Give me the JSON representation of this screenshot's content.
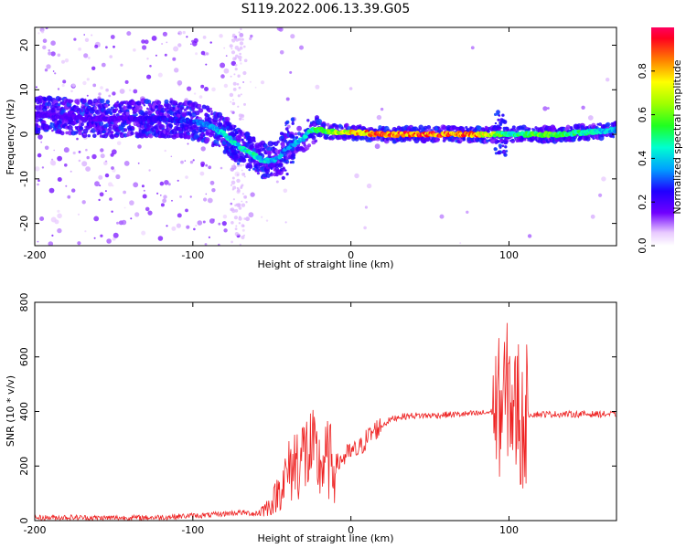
{
  "figure": {
    "title": "S119.2022.006.13.39.G05"
  },
  "chart_data": [
    {
      "type": "heatmap",
      "xlabel": "Height of straight line (km)",
      "ylabel": "Frequency (Hz)",
      "xlim": [
        -200,
        168
      ],
      "ylim": [
        -25,
        24
      ],
      "xticks": [
        -200,
        -100,
        0,
        100
      ],
      "yticks": [
        -20,
        -10,
        0,
        10,
        20
      ],
      "colorbar": {
        "label": "Normalized spectral amplitude",
        "range": [
          0,
          1
        ],
        "ticks": [
          0.0,
          0.2,
          0.4,
          0.6,
          0.8
        ]
      },
      "ridge_frequency": {
        "x": [
          -200,
          -180,
          -160,
          -140,
          -120,
          -100,
          -90,
          -80,
          -70,
          -60,
          -55,
          -50,
          -45,
          -40,
          -35,
          -30,
          -25,
          -20,
          -10,
          0,
          20,
          40,
          60,
          80,
          90,
          95,
          100,
          110,
          130,
          150,
          168
        ],
        "y": [
          4.5,
          4,
          3.5,
          3.5,
          3.5,
          3,
          2,
          0,
          -3,
          -5,
          -6,
          -6,
          -5,
          -3,
          -2,
          -1,
          1,
          1,
          0.5,
          0.5,
          0,
          0,
          0,
          0,
          0,
          0,
          0,
          0,
          0,
          0.5,
          1
        ]
      },
      "ridge_amplitude": {
        "x": [
          -200,
          -150,
          -100,
          -80,
          -60,
          -40,
          -25,
          -10,
          0,
          20,
          40,
          60,
          80,
          100,
          120,
          150,
          168
        ],
        "y": [
          0.2,
          0.2,
          0.3,
          0.45,
          0.5,
          0.35,
          0.5,
          0.7,
          0.85,
          0.95,
          0.95,
          0.95,
          0.9,
          0.5,
          0.65,
          0.5,
          0.4
        ]
      }
    },
    {
      "type": "line",
      "xlabel": "Height of straight line (km)",
      "ylabel": "SNR (10 * v/v)",
      "xlim": [
        -200,
        168
      ],
      "ylim": [
        0,
        800
      ],
      "xticks": [
        -200,
        -100,
        0,
        100
      ],
      "yticks": [
        0,
        200,
        400,
        600,
        800
      ],
      "series": [
        {
          "color": "#ee2222",
          "x": [
            -200,
            -180,
            -160,
            -140,
            -120,
            -100,
            -90,
            -80,
            -70,
            -60,
            -50,
            -45,
            -40,
            -35,
            -30,
            -25,
            -20,
            -15,
            -10,
            -5,
            0,
            5,
            10,
            15,
            20,
            25,
            30,
            40,
            50,
            60,
            70,
            80,
            85,
            90,
            95,
            98,
            100,
            102,
            104,
            106,
            108,
            110,
            120,
            140,
            160,
            168
          ],
          "y": [
            10,
            12,
            10,
            10,
            12,
            18,
            20,
            25,
            30,
            25,
            60,
            120,
            170,
            220,
            240,
            250,
            200,
            220,
            200,
            230,
            250,
            260,
            300,
            330,
            350,
            370,
            380,
            385,
            385,
            388,
            390,
            392,
            395,
            400,
            420,
            450,
            500,
            420,
            380,
            450,
            300,
            390,
            390,
            390,
            390,
            390
          ]
        }
      ]
    }
  ]
}
